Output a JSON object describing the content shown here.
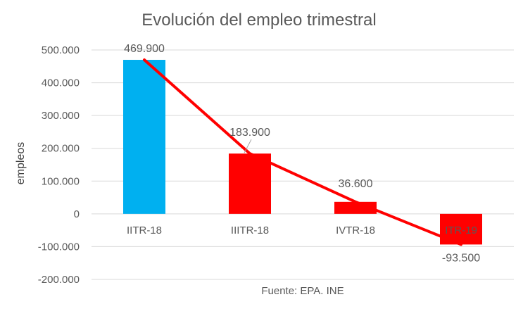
{
  "chart_data": {
    "type": "bar",
    "title": "Evolución del empleo trimestral",
    "xlabel": "",
    "ylabel": "empleos",
    "source": "Fuente: EPA. INE",
    "ylim": [
      -200000,
      500000
    ],
    "ytick_values": [
      500000,
      400000,
      300000,
      200000,
      100000,
      0,
      -100000,
      -200000
    ],
    "ytick_labels": [
      "500.000",
      "400.000",
      "300.000",
      "200.000",
      "100.000",
      "0",
      "-100.000",
      "-200.000"
    ],
    "categories": [
      "IITR-18",
      "IIITR-18",
      "IVTR-18",
      "ITR-19"
    ],
    "values": [
      469900,
      183900,
      36600,
      -93500
    ],
    "data_labels": [
      "469.900",
      "183.900",
      "36.600",
      "-93.500"
    ],
    "bar_colors": [
      "#00B0F0",
      "#FF0000",
      "#FF0000",
      "#FF0000"
    ],
    "trend_line": {
      "values": [
        469900,
        183900,
        36600,
        -93500
      ],
      "color": "#FF0000"
    },
    "grid": true,
    "legend": "none"
  }
}
